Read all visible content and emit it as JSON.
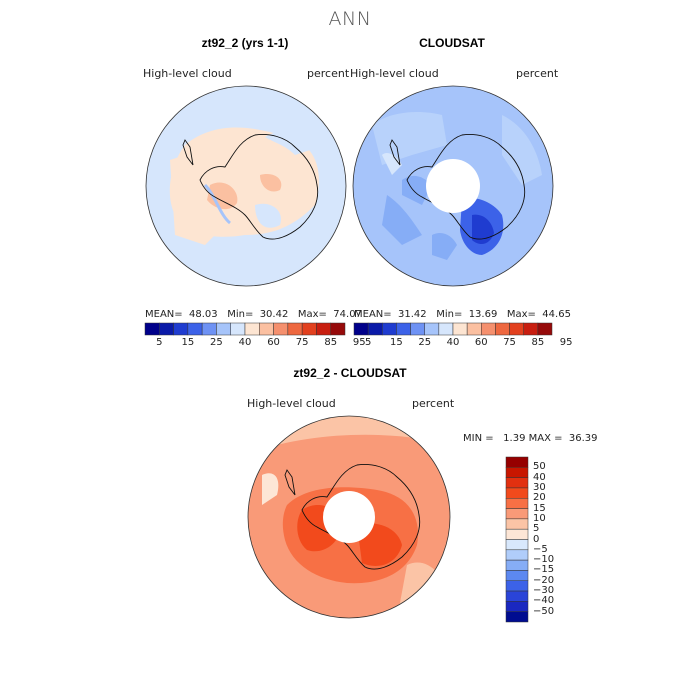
{
  "title": "ANN",
  "panels": [
    {
      "title": "zt92_2 (yrs 1-1)",
      "variable": "High-level cloud",
      "units": "percent",
      "stats": {
        "mean_label": "MEAN=",
        "mean": "48.03",
        "min_label": "Min=",
        "min": "30.42",
        "max_label": "Max=",
        "max": "74.07"
      }
    },
    {
      "title": "CLOUDSAT",
      "variable": "High-level cloud",
      "units": "percent",
      "stats": {
        "mean_label": "MEAN=",
        "mean": "31.42",
        "min_label": "Min=",
        "min": "13.69",
        "max_label": "Max=",
        "max": "44.65"
      }
    },
    {
      "title": "zt92_2 - CLOUDSAT",
      "variable": "High-level cloud",
      "units": "percent",
      "stats": {
        "min_label": "MIN =",
        "min": "1.39",
        "max_label": "MAX =",
        "max": "36.39"
      }
    }
  ],
  "abs_colorbar": {
    "colors": [
      "#00008a",
      "#0a1aa8",
      "#1f3cd0",
      "#3c62e8",
      "#6e92f4",
      "#a6c4fa",
      "#d6e6fc",
      "#fde5d2",
      "#fbc0a1",
      "#f5906e",
      "#ee6840",
      "#e2401e",
      "#c81e10",
      "#960a0a"
    ],
    "labels": [
      "5",
      "15",
      "25",
      "40",
      "60",
      "75",
      "85",
      "95"
    ]
  },
  "diff_colorbar": {
    "colors": [
      "#960000",
      "#c81600",
      "#e23010",
      "#f24a1c",
      "#f77045",
      "#f99a78",
      "#fbc4a6",
      "#fde6d6",
      "#d8e8fc",
      "#b0cdfa",
      "#86adf6",
      "#5c88f0",
      "#3c62e8",
      "#2a44d8",
      "#1a28c0",
      "#000c90"
    ],
    "labels": [
      "50",
      "40",
      "30",
      "20",
      "15",
      "10",
      "5",
      "0",
      "−5",
      "−10",
      "−15",
      "−20",
      "−30",
      "−40",
      "−50"
    ]
  }
}
